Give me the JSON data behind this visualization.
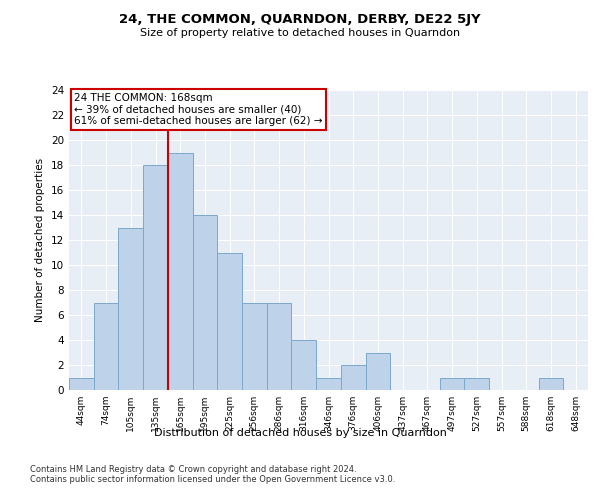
{
  "title": "24, THE COMMON, QUARNDON, DERBY, DE22 5JY",
  "subtitle": "Size of property relative to detached houses in Quarndon",
  "xlabel": "Distribution of detached houses by size in Quarndon",
  "ylabel": "Number of detached properties",
  "categories": [
    "44sqm",
    "74sqm",
    "105sqm",
    "135sqm",
    "165sqm",
    "195sqm",
    "225sqm",
    "256sqm",
    "286sqm",
    "316sqm",
    "346sqm",
    "376sqm",
    "406sqm",
    "437sqm",
    "467sqm",
    "497sqm",
    "527sqm",
    "557sqm",
    "588sqm",
    "618sqm",
    "648sqm"
  ],
  "values": [
    1,
    7,
    13,
    18,
    19,
    14,
    11,
    7,
    7,
    4,
    1,
    2,
    3,
    0,
    0,
    1,
    1,
    0,
    0,
    1,
    0
  ],
  "bar_color": "#bed3e9",
  "bar_edge_color": "#7aa8cc",
  "vline_color": "#cc0000",
  "annotation_text": "24 THE COMMON: 168sqm\n← 39% of detached houses are smaller (40)\n61% of semi-detached houses are larger (62) →",
  "annotation_box_color": "#ffffff",
  "annotation_box_edge_color": "#cc0000",
  "ylim": [
    0,
    24
  ],
  "yticks": [
    0,
    2,
    4,
    6,
    8,
    10,
    12,
    14,
    16,
    18,
    20,
    22,
    24
  ],
  "bg_color": "#e8eef6",
  "grid_color": "#ffffff",
  "footer_line1": "Contains HM Land Registry data © Crown copyright and database right 2024.",
  "footer_line2": "Contains public sector information licensed under the Open Government Licence v3.0."
}
